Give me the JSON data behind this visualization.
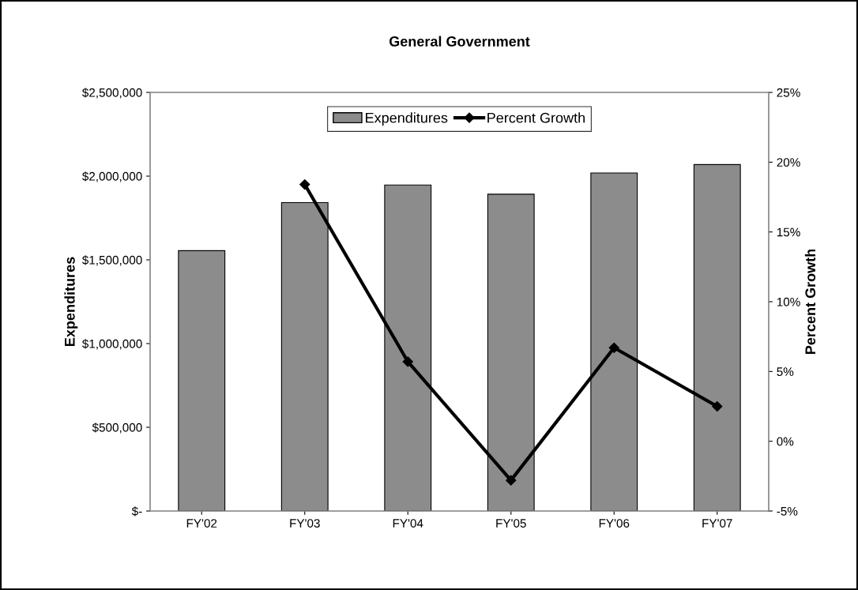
{
  "chart_data": {
    "type": "bar",
    "title": "General Government",
    "ylabel": "Expenditures",
    "y2label": "Percent Growth",
    "categories": [
      "FY'02",
      "FY'03",
      "FY'04",
      "FY'05",
      "FY'06",
      "FY'07"
    ],
    "series": [
      {
        "name": "Expenditures",
        "color": "#8c8c8c",
        "values": [
          1555000,
          1842000,
          1947000,
          1892000,
          2019000,
          2069000
        ]
      },
      {
        "name": "Percent Growth",
        "type": "line",
        "axis": "y2",
        "color": "#000000",
        "marker": "diamond",
        "values": [
          null,
          18.4,
          5.7,
          -2.8,
          6.7,
          2.5
        ]
      }
    ],
    "ylim": [
      0,
      2500000
    ],
    "yticks": [
      {
        "value": 0,
        "label": "$-"
      },
      {
        "value": 500000,
        "label": "$500,000"
      },
      {
        "value": 1000000,
        "label": "$1,000,000"
      },
      {
        "value": 1500000,
        "label": "$1,500,000"
      },
      {
        "value": 2000000,
        "label": "$2,000,000"
      },
      {
        "value": 2500000,
        "label": "$2,500,000"
      }
    ],
    "y2lim": [
      -5,
      25
    ],
    "y2ticks": [
      {
        "value": -5,
        "label": "-5%"
      },
      {
        "value": 0,
        "label": "0%"
      },
      {
        "value": 5,
        "label": "5%"
      },
      {
        "value": 10,
        "label": "10%"
      },
      {
        "value": 15,
        "label": "15%"
      },
      {
        "value": 20,
        "label": "20%"
      },
      {
        "value": 25,
        "label": "25%"
      }
    ],
    "legend": "top",
    "grid": false
  }
}
